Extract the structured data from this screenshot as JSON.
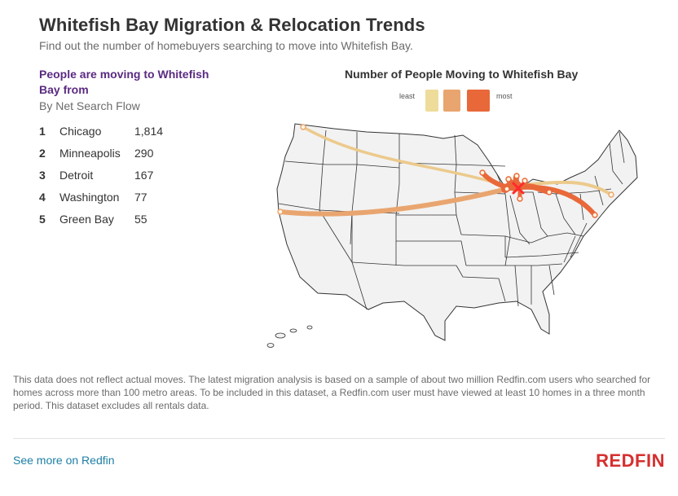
{
  "header": {
    "title": "Whitefish Bay Migration & Relocation Trends",
    "subtitle": "Find out the number of homebuyers searching to move into Whitefish Bay."
  },
  "list": {
    "heading": "People are moving to Whitefish Bay from",
    "subheading": "By Net Search Flow",
    "items": [
      {
        "rank": "1",
        "city": "Chicago",
        "value": "1,814"
      },
      {
        "rank": "2",
        "city": "Minneapolis",
        "value": "290"
      },
      {
        "rank": "3",
        "city": "Detroit",
        "value": "167"
      },
      {
        "rank": "4",
        "city": "Washington",
        "value": "77"
      },
      {
        "rank": "5",
        "city": "Green Bay",
        "value": "55"
      }
    ]
  },
  "map": {
    "title": "Number of People Moving to Whitefish Bay",
    "legend": {
      "least_label": "least",
      "most_label": "most",
      "colors": [
        "#eedc9a",
        "#e9a56f",
        "#e9683a"
      ]
    },
    "destination": "Whitefish Bay",
    "colors": {
      "state_fill": "#f2f2f2",
      "state_stroke": "#333333",
      "flow_light": "#ecca8c",
      "flow_mid": "#e9a56f",
      "flow_strong": "#e9683a",
      "marker": "#ff2b2b"
    }
  },
  "footer": {
    "note": "This data does not reflect actual moves. The latest migration analysis is based on a sample of about two million Redfin.com users who searched for homes across more than 100 metro areas. To be included in this dataset, a Redfin.com user must have viewed at least 10 homes in a three month period. This dataset excludes all rentals data.",
    "link": "See more on Redfin",
    "logo": "REDFIN"
  }
}
